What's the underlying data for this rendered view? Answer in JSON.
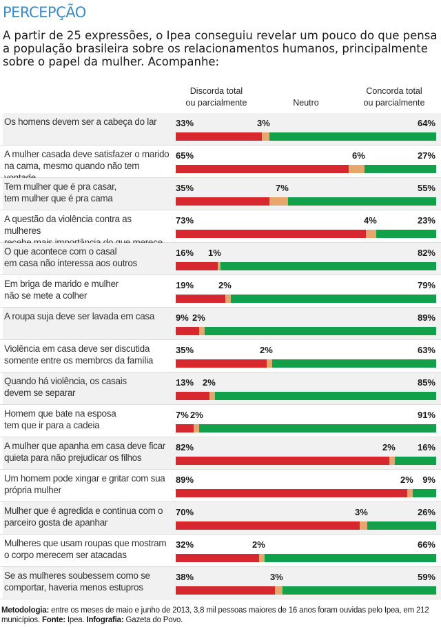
{
  "kicker": "PERCEPÇÃO",
  "intro": "A partir de 25 expressões, o Ipea conseguiu revelar um pouco do que pensa a população brasileira sobre os relacionamentos humanos, principalmente sobre o papel da mulher. Acompanhe:",
  "columns": {
    "disagree_line1": "Discorda total",
    "disagree_line2": "ou parcialmente",
    "neutral": "Neutro",
    "agree_line1": "Concorda total",
    "agree_line2": "ou parcialmente"
  },
  "colors": {
    "disagree": "#d7282f",
    "neutral": "#e7a66e",
    "agree": "#13a04a",
    "kicker": "#3b8bc9"
  },
  "chart_data": {
    "type": "bar",
    "orientation": "horizontal",
    "stacked": true,
    "series_names": [
      "Discorda total ou parcialmente",
      "Neutro",
      "Concorda total ou parcialmente"
    ],
    "unit": "%",
    "rows": [
      {
        "statement": [
          "Os homens devem ser a cabeça do lar"
        ],
        "disagree": 33,
        "neutral": 3,
        "agree": 64
      },
      {
        "statement": [
          "A mulher casada deve satisfazer o marido",
          "na cama, mesmo quando não tem vontade"
        ],
        "disagree": 65,
        "neutral": 6,
        "agree": 27
      },
      {
        "statement": [
          "Tem mulher que é pra casar,",
          "tem mulher que é pra cama"
        ],
        "disagree": 35,
        "neutral": 7,
        "agree": 55
      },
      {
        "statement": [
          "A questão da violência contra as mulheres",
          "recebe mais importância do que merece"
        ],
        "disagree": 73,
        "neutral": 4,
        "agree": 23
      },
      {
        "statement": [
          "O que acontece com o casal",
          "em casa não interessa aos outros"
        ],
        "disagree": 16,
        "neutral": 1,
        "agree": 82
      },
      {
        "statement": [
          "Em briga de marido e mulher",
          "não se mete a colher"
        ],
        "disagree": 19,
        "neutral": 2,
        "agree": 79
      },
      {
        "statement": [
          "A roupa suja deve ser lavada em casa"
        ],
        "disagree": 9,
        "neutral": 2,
        "agree": 89
      },
      {
        "statement": [
          "Violência em casa deve ser discutida",
          "somente entre os membros da família"
        ],
        "disagree": 35,
        "neutral": 2,
        "agree": 63
      },
      {
        "statement": [
          "Quando há violência, os casais",
          "devem se separar"
        ],
        "disagree": 13,
        "neutral": 2,
        "agree": 85
      },
      {
        "statement": [
          "Homem que bate na esposa",
          "tem que ir para a cadeia"
        ],
        "disagree": 7,
        "neutral": 2,
        "agree": 91
      },
      {
        "statement": [
          "A mulher que apanha em casa deve ficar",
          "quieta para não prejudicar os filhos"
        ],
        "disagree": 82,
        "neutral": 2,
        "agree": 16
      },
      {
        "statement": [
          "Um homem pode xingar e gritar com sua",
          "própria mulher"
        ],
        "disagree": 89,
        "neutral": 2,
        "agree": 9
      },
      {
        "statement": [
          "Mulher que é agredida e continua com o",
          "parceiro gosta de apanhar"
        ],
        "disagree": 70,
        "neutral": 3,
        "agree": 26
      },
      {
        "statement": [
          "Mulheres que usam roupas que mostram",
          "o corpo merecem ser atacadas"
        ],
        "disagree": 32,
        "neutral": 2,
        "agree": 66
      },
      {
        "statement": [
          "Se as mulheres soubessem como se",
          "comportar, haveria menos estupros"
        ],
        "disagree": 38,
        "neutral": 3,
        "agree": 59
      }
    ]
  },
  "footer": {
    "method_label": "Metodologia:",
    "method_text": "entre os meses de maio e junho de 2013, 3,8 mil pessoas maiores de 16 anos foram ouvidas pelo Ipea, em 212 municípios.",
    "source_label": "Fonte:",
    "source_text": "Ipea.",
    "graphic_label": "Infografia:",
    "graphic_text": "Gazeta do Povo."
  }
}
